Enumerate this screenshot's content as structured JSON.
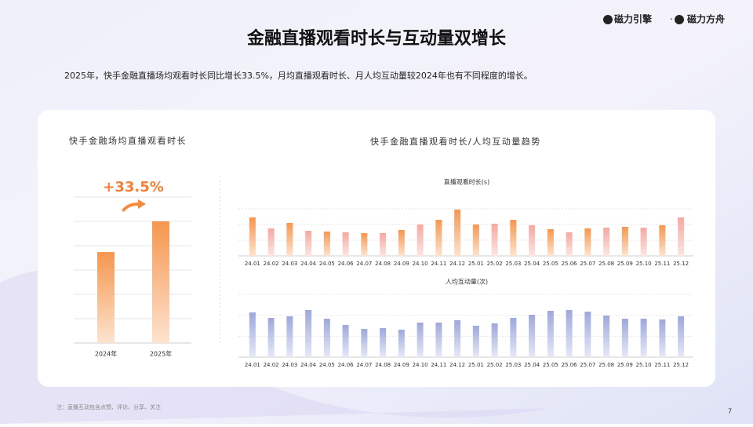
{
  "header": {
    "logos": [
      "磁力引擎",
      "磁力方舟"
    ],
    "title": "金融直播观看时长与互动量双增长",
    "subtitle": "2025年，快手金融直播场均观看时长同比增长33.5%，月均直播观看时长、月人均互动量较2024年也有不同程度的增长。"
  },
  "panels": {
    "left": "快手金融场均直播观看时长",
    "right": "快手金融直播观看时长/人均互动量趋势"
  },
  "chart_data": [
    {
      "type": "bar",
      "categories": [
        "2024年",
        "2025年"
      ],
      "values": [
        3.74,
        5.0
      ],
      "annotation": "+33.5%",
      "color": "orange",
      "ylim": [
        0,
        6
      ],
      "grid": true
    },
    {
      "type": "bar",
      "title": "直播观看时长(s)",
      "categories": [
        "24.01",
        "24.02",
        "24.03",
        "24.04",
        "24.05",
        "24.06",
        "24.07",
        "24.08",
        "24.09",
        "24.10",
        "24.11",
        "24.12",
        "25.01",
        "25.02",
        "25.03",
        "25.04",
        "25.05",
        "25.06",
        "25.07",
        "25.08",
        "25.09",
        "25.10",
        "25.11",
        "25.12"
      ],
      "values": [
        49,
        35,
        42,
        32,
        31,
        30,
        29,
        29,
        33,
        40,
        46,
        59,
        40,
        41,
        46,
        39,
        34,
        30,
        35,
        36,
        37,
        36,
        39,
        49
      ],
      "color": "orange",
      "ylim": [
        0,
        60
      ],
      "grid": true
    },
    {
      "type": "bar",
      "title": "人均互动量(次)",
      "categories": [
        "24.01",
        "24.02",
        "24.03",
        "24.04",
        "24.05",
        "24.06",
        "24.07",
        "24.08",
        "24.09",
        "24.10",
        "24.11",
        "24.12",
        "25.01",
        "25.02",
        "25.03",
        "25.04",
        "25.05",
        "25.06",
        "25.07",
        "25.08",
        "25.09",
        "25.10",
        "25.11",
        "25.12"
      ],
      "values": [
        57,
        50,
        52,
        60,
        49,
        41,
        36,
        37,
        35,
        44,
        44,
        47,
        40,
        43,
        50,
        54,
        59,
        60,
        58,
        53,
        49,
        49,
        48,
        52
      ],
      "color": "blue",
      "ylim": [
        0,
        80
      ],
      "grid": true
    }
  ],
  "footer": {
    "note": "注：直播互动包含点赞、评论、分享、关注",
    "page": "7"
  }
}
